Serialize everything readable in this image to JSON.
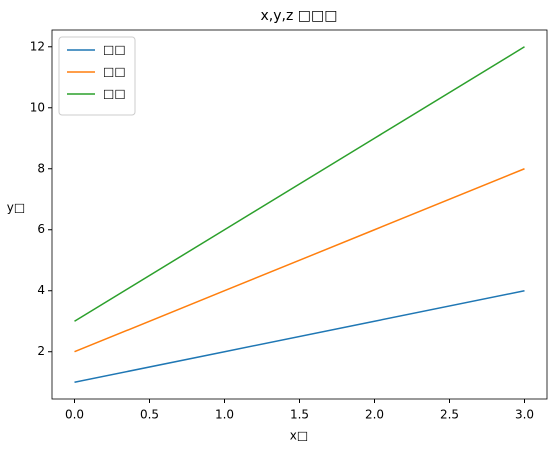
{
  "chart_data": {
    "type": "line",
    "title": "x,y,z □□□",
    "x_label": "x□",
    "y_label": "y□",
    "x": [
      0,
      1,
      2,
      3
    ],
    "series": [
      {
        "name": "□□",
        "color": "#1f77b4",
        "values": [
          1,
          2,
          3,
          4
        ]
      },
      {
        "name": "□□",
        "color": "#ff7f0e",
        "values": [
          2,
          4,
          6,
          8
        ]
      },
      {
        "name": "□□",
        "color": "#2ca02c",
        "values": [
          3,
          6,
          9,
          12
        ]
      }
    ],
    "xlim": [
      -0.15,
      3.15
    ],
    "xticks": [
      {
        "value": 0,
        "label": "0.0"
      },
      0.5,
      {
        "value": 1,
        "label": "1.0"
      },
      1.5,
      {
        "value": 2,
        "label": "2.0"
      },
      2.5,
      {
        "value": 3,
        "label": "3.0"
      }
    ],
    "ylim": [
      0.45,
      12.55
    ],
    "yticks": [
      2,
      4,
      6,
      8,
      10,
      12
    ],
    "legend": "upper-left"
  }
}
